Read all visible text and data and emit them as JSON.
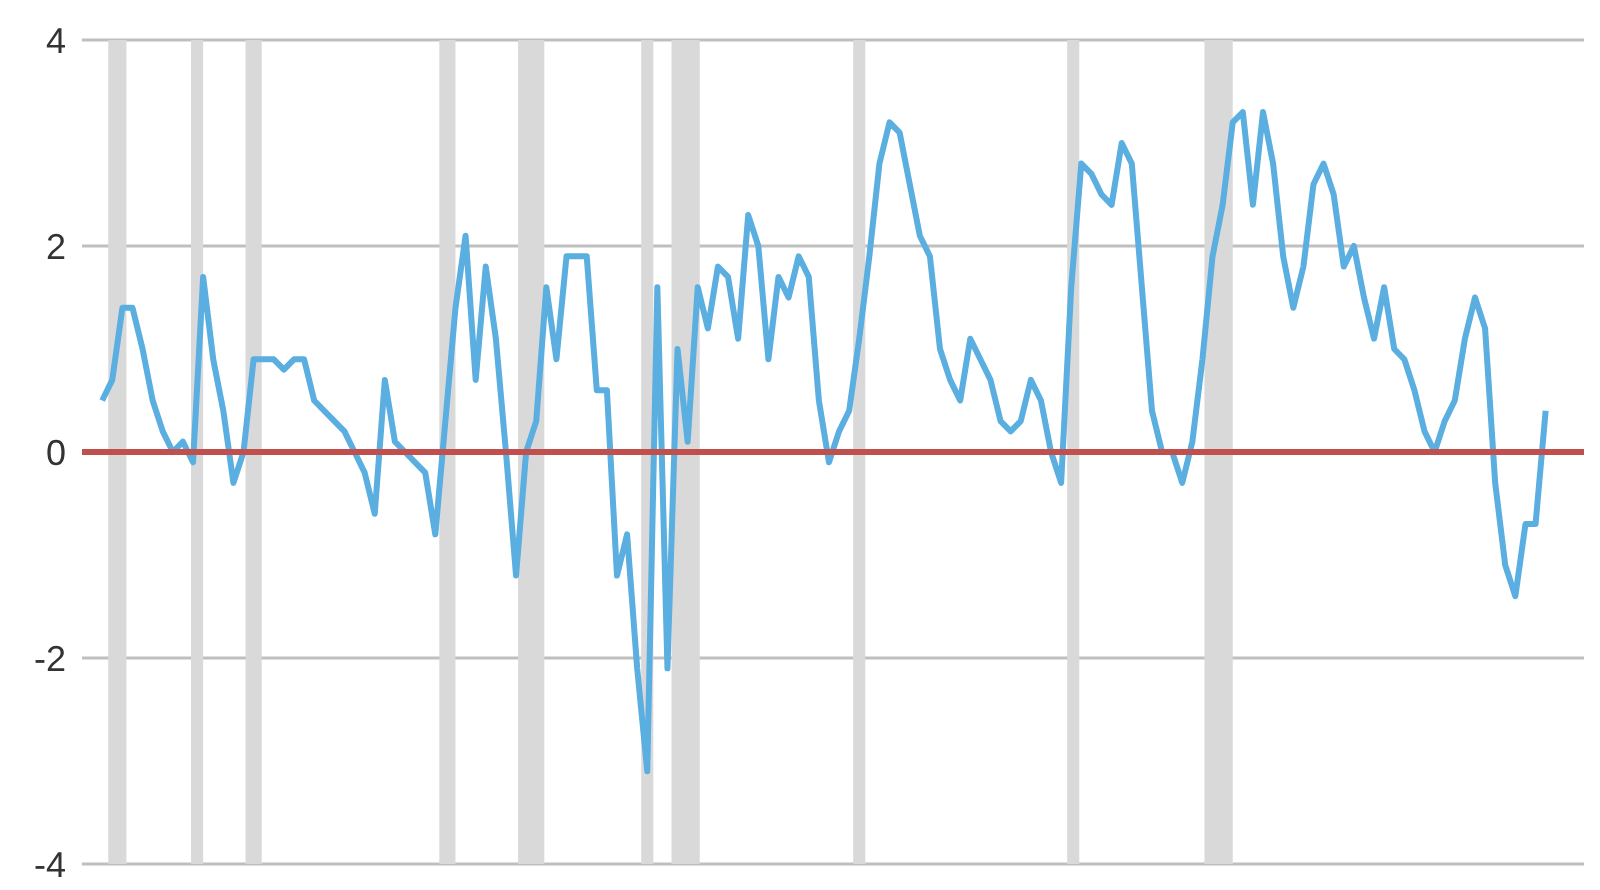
{
  "chart_data": {
    "type": "line",
    "categories": [
      null,
      null,
      null,
      null,
      null,
      null,
      null,
      null,
      null,
      null,
      null,
      null,
      null,
      null,
      null,
      null,
      null,
      null,
      null,
      null,
      null,
      null,
      null,
      null,
      null,
      null,
      null,
      null,
      null,
      null,
      null,
      null,
      null,
      null,
      null,
      null,
      null,
      null,
      null,
      null,
      null,
      null,
      null,
      null,
      null,
      null,
      null,
      null,
      null,
      null,
      null,
      null,
      null,
      null,
      null,
      null,
      null,
      null,
      null,
      null,
      null,
      null,
      null,
      null,
      null,
      null,
      null,
      null,
      null,
      null,
      null,
      null,
      null,
      null,
      null,
      null,
      null,
      null,
      null,
      null,
      null,
      null,
      null,
      null,
      null,
      null,
      null,
      null,
      null,
      null,
      null,
      null,
      null,
      null,
      null,
      null,
      null,
      null,
      null,
      null,
      null,
      null,
      null,
      null,
      null,
      null,
      null,
      null,
      null,
      null,
      null,
      null,
      null,
      null,
      null,
      null,
      null,
      null,
      null,
      null,
      null,
      null,
      null,
      null,
      null,
      null,
      null,
      null,
      null,
      null,
      null,
      null,
      null,
      null,
      null,
      null,
      null,
      null,
      null,
      null,
      null,
      null,
      null,
      null
    ],
    "series": [
      {
        "color": "#5aaee0",
        "values": [
          0.5,
          0.7,
          1.4,
          1.4,
          1.0,
          0.5,
          0.2,
          0.0,
          0.1,
          -0.1,
          1.7,
          0.9,
          0.4,
          -0.3,
          0.0,
          0.9,
          0.9,
          0.9,
          0.8,
          0.9,
          0.9,
          0.5,
          0.4,
          0.3,
          0.2,
          0.0,
          -0.2,
          -0.6,
          0.7,
          0.1,
          0.0,
          -0.1,
          -0.2,
          -0.8,
          0.3,
          1.4,
          2.1,
          0.7,
          1.8,
          1.1,
          0.0,
          -1.2,
          0.0,
          0.3,
          1.6,
          0.9,
          1.9,
          1.9,
          1.9,
          0.6,
          0.6,
          -1.2,
          -0.8,
          -2.1,
          -3.1,
          1.6,
          -2.1,
          1.0,
          0.1,
          1.6,
          1.2,
          1.8,
          1.7,
          1.1,
          2.3,
          2.0,
          0.9,
          1.7,
          1.5,
          1.9,
          1.7,
          0.5,
          -0.1,
          0.2,
          0.4,
          1.1,
          1.9,
          2.8,
          3.2,
          3.1,
          2.6,
          2.1,
          1.9,
          1.0,
          0.7,
          0.5,
          1.1,
          0.9,
          0.7,
          0.3,
          0.2,
          0.3,
          0.7,
          0.5,
          0.0,
          -0.3,
          1.6,
          2.8,
          2.7,
          2.5,
          2.4,
          3.0,
          2.8,
          1.6,
          0.4,
          0.0,
          0.0,
          -0.3,
          0.1,
          0.9,
          1.9,
          2.4,
          3.2,
          3.3,
          2.4,
          3.3,
          2.8,
          1.9,
          1.4,
          1.8,
          2.6,
          2.8,
          2.5,
          1.8,
          2.0,
          1.5,
          1.1,
          1.6,
          1.0,
          0.9,
          0.6,
          0.2,
          0.0,
          0.3,
          0.5,
          1.1,
          1.5,
          1.2,
          -0.3,
          -1.1,
          -1.4,
          -0.7,
          -0.7,
          0.4
        ]
      }
    ],
    "ylim": [
      -4,
      4
    ],
    "yticks": [
      -4,
      -2,
      0,
      2,
      4
    ],
    "grid": "y",
    "tick_labels": "y",
    "ref_lines": [
      {
        "axis": "y",
        "value": 0,
        "color": "#c0504d"
      }
    ]
  }
}
